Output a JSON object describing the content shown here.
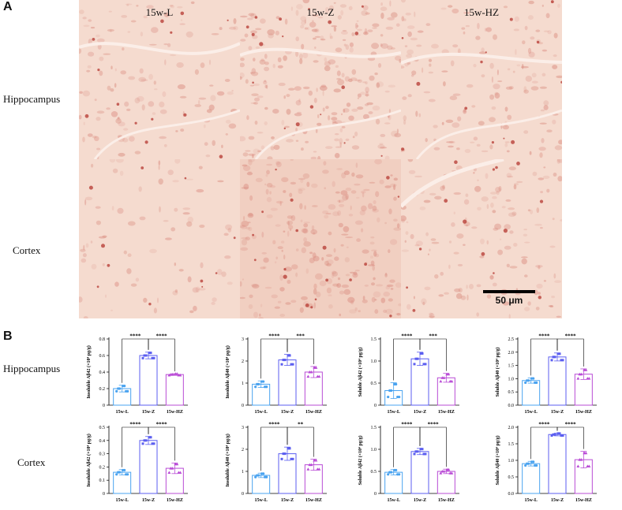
{
  "panel_a": {
    "letter": "A",
    "columns": [
      "15w-L",
      "15w-Z",
      "15w-HZ"
    ],
    "rows": [
      "Hippocampus",
      "Cortex"
    ],
    "scale_bar": "50 μm"
  },
  "panel_b": {
    "letter": "B",
    "rows": [
      "Hippocampus",
      "Cortex"
    ]
  },
  "colors": {
    "L": "#4aa3f0",
    "Z": "#5b5ef0",
    "HZ": "#b94bd6",
    "tissue": "#f6dcd0",
    "stain": "#c9574a"
  },
  "chart_data": [
    {
      "type": "bar",
      "ylabel": "Insoluble Aβ42 (×10⁴ pg/g)",
      "categories": [
        "15w-L",
        "15w-Z",
        "15w-HZ"
      ],
      "values": [
        0.2,
        0.6,
        0.37
      ],
      "errors": [
        0.04,
        0.04,
        0.01
      ],
      "ylim": [
        0,
        0.8
      ],
      "ticks": [
        "0",
        "0.2",
        "0.4",
        "0.6",
        "0.8"
      ],
      "significance": [
        "****",
        "****"
      ]
    },
    {
      "type": "bar",
      "ylabel": "Insoluble Aβ40 (×10⁴ pg/g)",
      "categories": [
        "15w-L",
        "15w-Z",
        "15w-HZ"
      ],
      "values": [
        0.95,
        2.05,
        1.5
      ],
      "errors": [
        0.15,
        0.25,
        0.25
      ],
      "ylim": [
        0,
        3
      ],
      "ticks": [
        "0",
        "1",
        "2",
        "3"
      ],
      "significance": [
        "****",
        "***"
      ]
    },
    {
      "type": "bar",
      "ylabel": "Soluble Aβ42 (×10⁴ pg/g)",
      "categories": [
        "15w-L",
        "15w-Z",
        "15w-HZ"
      ],
      "values": [
        0.33,
        1.05,
        0.62
      ],
      "errors": [
        0.18,
        0.15,
        0.1
      ],
      "ylim": [
        0,
        1.5
      ],
      "ticks": [
        "0",
        "0.5",
        "1.0",
        "1.5"
      ],
      "significance": [
        "****",
        "***"
      ]
    },
    {
      "type": "bar",
      "ylabel": "Soluble Aβ40 (×10⁴ pg/g)",
      "categories": [
        "15w-L",
        "15w-Z",
        "15w-HZ"
      ],
      "values": [
        0.93,
        1.82,
        1.17
      ],
      "errors": [
        0.1,
        0.15,
        0.2
      ],
      "ylim": [
        0,
        2.5
      ],
      "ticks": [
        "0.0",
        "0.5",
        "1.0",
        "1.5",
        "2.0",
        "2.5"
      ],
      "significance": [
        "****",
        "****"
      ]
    },
    {
      "type": "bar",
      "ylabel": "Insoluble Aβ42 (×10⁴ pg/g)",
      "categories": [
        "15w-L",
        "15w-Z",
        "15w-HZ"
      ],
      "values": [
        0.16,
        0.4,
        0.19
      ],
      "errors": [
        0.02,
        0.03,
        0.04
      ],
      "ylim": [
        0,
        0.5
      ],
      "ticks": [
        "0",
        "0.1",
        "0.2",
        "0.3",
        "0.4",
        "0.5"
      ],
      "significance": [
        "****",
        "****"
      ]
    },
    {
      "type": "bar",
      "ylabel": "Insoluble Aβ40 (×10⁴ pg/g)",
      "categories": [
        "15w-L",
        "15w-Z",
        "15w-HZ"
      ],
      "values": [
        0.82,
        1.8,
        1.3
      ],
      "errors": [
        0.1,
        0.3,
        0.25
      ],
      "ylim": [
        0,
        3
      ],
      "ticks": [
        "0",
        "1",
        "2",
        "3"
      ],
      "significance": [
        "****",
        "**"
      ]
    },
    {
      "type": "bar",
      "ylabel": "Soluble Aβ42 (×10⁴ pg/g)",
      "categories": [
        "15w-L",
        "15w-Z",
        "15w-HZ"
      ],
      "values": [
        0.48,
        0.95,
        0.5
      ],
      "errors": [
        0.06,
        0.07,
        0.05
      ],
      "ylim": [
        0,
        1.5
      ],
      "ticks": [
        "0",
        "0.5",
        "1.0",
        "1.5"
      ],
      "significance": [
        "****",
        "****"
      ]
    },
    {
      "type": "bar",
      "ylabel": "Soluble Aβ40 (×10⁴ pg/g)",
      "categories": [
        "15w-L",
        "15w-Z",
        "15w-HZ"
      ],
      "values": [
        0.9,
        1.78,
        1.02
      ],
      "errors": [
        0.07,
        0.04,
        0.25
      ],
      "ylim": [
        0,
        2.0
      ],
      "ticks": [
        "0.0",
        "0.5",
        "1.0",
        "1.5",
        "2.0"
      ],
      "significance": [
        "****",
        "****"
      ]
    }
  ]
}
